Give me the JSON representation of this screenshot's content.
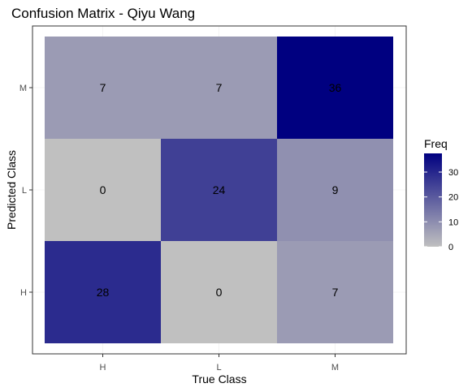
{
  "chart_data": {
    "type": "heatmap",
    "title": "Confusion Matrix - Qiyu Wang",
    "xlabel": "True Class",
    "ylabel": "Predicted Class",
    "x_categories": [
      "H",
      "L",
      "M"
    ],
    "y_categories": [
      "H",
      "L",
      "M"
    ],
    "cells": [
      {
        "x": "H",
        "y": "M",
        "value": 7
      },
      {
        "x": "L",
        "y": "M",
        "value": 7
      },
      {
        "x": "M",
        "y": "M",
        "value": 36
      },
      {
        "x": "H",
        "y": "L",
        "value": 0
      },
      {
        "x": "L",
        "y": "L",
        "value": 24
      },
      {
        "x": "M",
        "y": "L",
        "value": 9
      },
      {
        "x": "H",
        "y": "H",
        "value": 28
      },
      {
        "x": "L",
        "y": "H",
        "value": 0
      },
      {
        "x": "M",
        "y": "H",
        "value": 7
      }
    ],
    "color_scale": {
      "low_color": "#c0c0c0",
      "high_color": "#000080",
      "min": 0,
      "max": 36
    },
    "legend": {
      "title": "Freq",
      "ticks": [
        0,
        10,
        20,
        30
      ],
      "placement": "right"
    },
    "grid": true
  }
}
